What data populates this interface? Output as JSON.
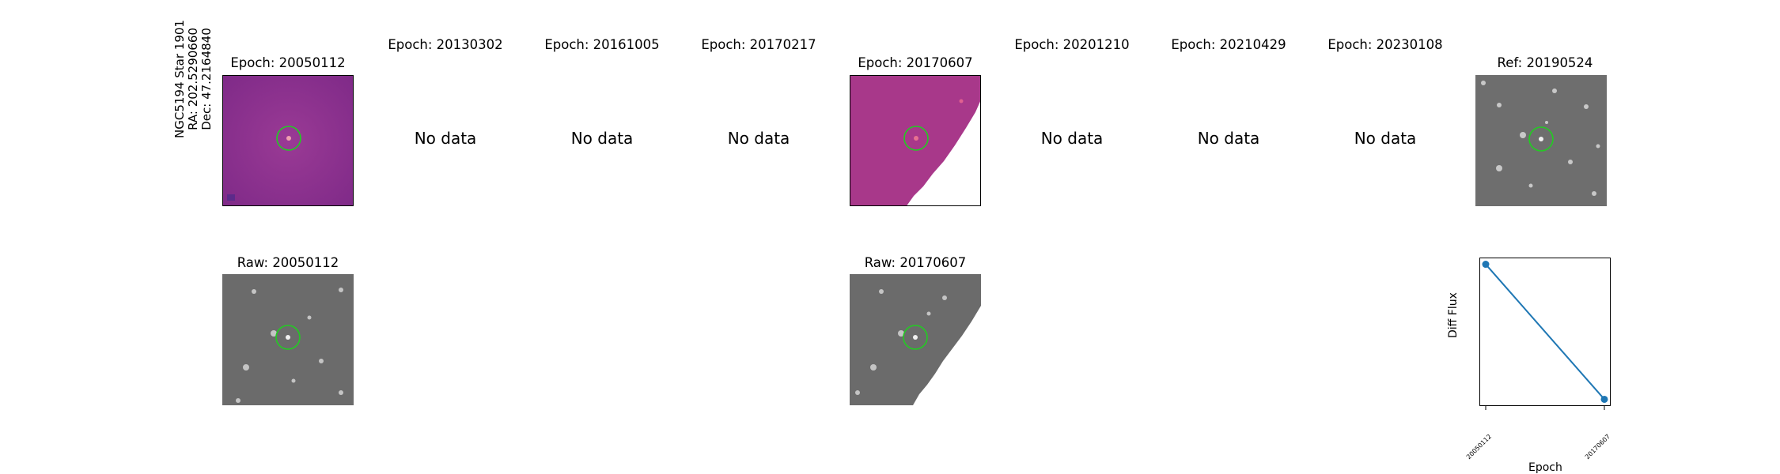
{
  "star_info": {
    "name": "NGC5194 Star 1901",
    "ra": "RA: 202.5290660",
    "dec": "Dec: 47.2164840"
  },
  "epochs": [
    {
      "title": "Epoch: 20050112",
      "has_data": true
    },
    {
      "title": "Epoch: 20130302",
      "has_data": false,
      "message": "No data"
    },
    {
      "title": "Epoch: 20161005",
      "has_data": false,
      "message": "No data"
    },
    {
      "title": "Epoch: 20170217",
      "has_data": false,
      "message": "No data"
    },
    {
      "title": "Epoch: 20170607",
      "has_data": true
    },
    {
      "title": "Epoch: 20201210",
      "has_data": false,
      "message": "No data"
    },
    {
      "title": "Epoch: 20210429",
      "has_data": false,
      "message": "No data"
    },
    {
      "title": "Epoch: 20230108",
      "has_data": false,
      "message": "No data"
    }
  ],
  "reference": {
    "title": "Ref: 20190524"
  },
  "raw": [
    {
      "title": "Raw: 20050112"
    },
    {
      "title": "Raw: 20170607"
    }
  ],
  "colors": {
    "diff_bg": "#8a2f8f",
    "diff_bg2": "#a23a8a",
    "circle": "#22cc22",
    "gray_bg": "#6d6d6d",
    "line": "#1f77b4"
  },
  "chart_data": {
    "type": "line",
    "categories": [
      "20050112",
      "20170607"
    ],
    "series": [
      {
        "values": [
          1.0,
          0.0
        ]
      }
    ],
    "xlabel": "Epoch",
    "ylabel": "Diff Flux",
    "ylim": [
      -0.05,
      1.05
    ],
    "yticks_shown": false,
    "grid": false
  }
}
